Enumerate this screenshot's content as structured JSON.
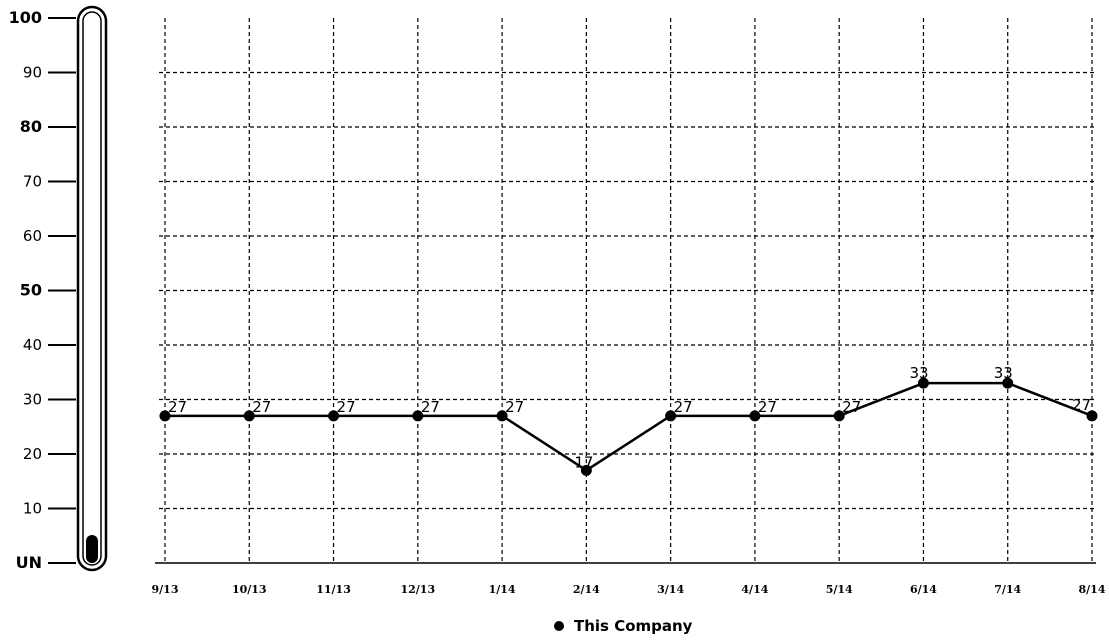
{
  "chart_data": {
    "type": "line",
    "categories": [
      "9/13",
      "10/13",
      "11/13",
      "12/13",
      "1/14",
      "2/14",
      "3/14",
      "4/14",
      "5/14",
      "6/14",
      "7/14",
      "8/14"
    ],
    "series": [
      {
        "name": "This Company",
        "values": [
          27,
          27,
          27,
          27,
          27,
          17,
          27,
          27,
          27,
          33,
          33,
          27
        ],
        "labels": [
          "27",
          "27",
          "27",
          "27",
          "27",
          "17",
          "27",
          "27",
          "27",
          "33",
          "33",
          "27"
        ]
      }
    ],
    "ylim": [
      0,
      100
    ],
    "y_ticks": [
      {
        "value": 100,
        "label": "100",
        "bold": true
      },
      {
        "value": 90,
        "label": "90",
        "bold": false
      },
      {
        "value": 80,
        "label": "80",
        "bold": true
      },
      {
        "value": 70,
        "label": "70",
        "bold": false
      },
      {
        "value": 60,
        "label": "60",
        "bold": false
      },
      {
        "value": 50,
        "label": "50",
        "bold": true
      },
      {
        "value": 40,
        "label": "40",
        "bold": false
      },
      {
        "value": 30,
        "label": "30",
        "bold": false
      },
      {
        "value": 20,
        "label": "20",
        "bold": false
      },
      {
        "value": 10,
        "label": "10",
        "bold": false
      },
      {
        "value": 0,
        "label": "UN",
        "bold": true
      }
    ],
    "grid": true,
    "grid_style": "dashed",
    "legend_position": "bottom-center",
    "colors": {
      "line": "#000000",
      "marker": "#000000",
      "grid": "#000000"
    }
  }
}
